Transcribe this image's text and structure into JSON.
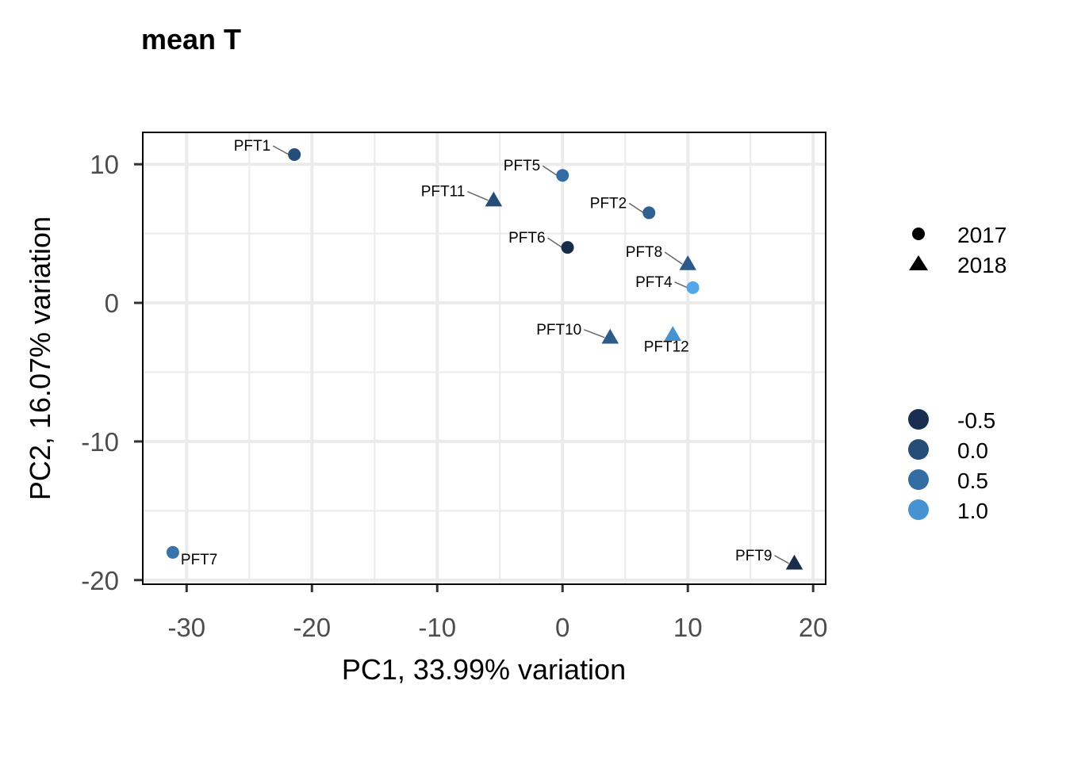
{
  "chart_data": {
    "type": "scatter",
    "title": "mean T",
    "xlabel": "PC1, 33.99% variation",
    "ylabel": "PC2, 16.07% variation",
    "xlim": [
      -33.5,
      21.0
    ],
    "ylim": [
      -20.3,
      12.3
    ],
    "xticks": [
      -30,
      -20,
      -10,
      0,
      10,
      20
    ],
    "xtick_labels": [
      "-30",
      "-20",
      "-10",
      "0",
      "10",
      "20"
    ],
    "yticks": [
      -20,
      -10,
      0,
      10
    ],
    "ytick_labels": [
      "-20",
      "-10",
      "0",
      "10"
    ],
    "grid": true,
    "points": [
      {
        "label": "PFT1",
        "x": -21.4,
        "y": 10.7,
        "year": "2017",
        "color_value": 0.0
      },
      {
        "label": "PFT5",
        "x": 0.0,
        "y": 9.2,
        "year": "2017",
        "color_value": 0.5
      },
      {
        "label": "PFT11",
        "x": -5.5,
        "y": 7.4,
        "year": "2018",
        "color_value": 0.0
      },
      {
        "label": "PFT2",
        "x": 6.9,
        "y": 6.5,
        "year": "2017",
        "color_value": 0.3
      },
      {
        "label": "PFT6",
        "x": 0.4,
        "y": 4.0,
        "year": "2017",
        "color_value": -0.6
      },
      {
        "label": "PFT8",
        "x": 10.0,
        "y": 2.8,
        "year": "2018",
        "color_value": 0.2
      },
      {
        "label": "PFT4",
        "x": 10.4,
        "y": 1.1,
        "year": "2017",
        "color_value": 1.3
      },
      {
        "label": "PFT10",
        "x": 3.8,
        "y": -2.5,
        "year": "2018",
        "color_value": 0.2
      },
      {
        "label": "PFT12",
        "x": 8.8,
        "y": -2.3,
        "year": "2018",
        "color_value": 1.0
      },
      {
        "label": "PFT7",
        "x": -31.1,
        "y": -18.0,
        "year": "2017",
        "color_value": 0.6
      },
      {
        "label": "PFT9",
        "x": 18.5,
        "y": -18.8,
        "year": "2018",
        "color_value": -0.6
      }
    ],
    "shape_legend": [
      {
        "label": "2017",
        "shape": "circle"
      },
      {
        "label": "2018",
        "shape": "triangle"
      }
    ],
    "color_legend": [
      {
        "label": "-0.5",
        "color": "#1a2f4f"
      },
      {
        "label": "0.0",
        "color": "#264d77"
      },
      {
        "label": "0.5",
        "color": "#346da3"
      },
      {
        "label": "1.0",
        "color": "#4792d0"
      }
    ],
    "legend_placement": "right"
  }
}
